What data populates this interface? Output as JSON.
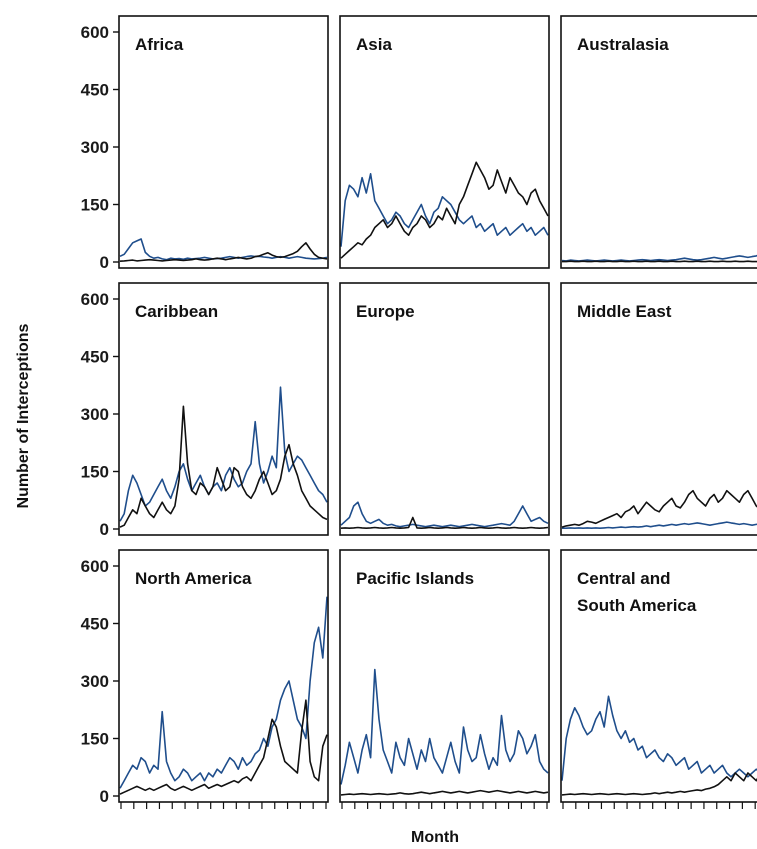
{
  "figure": {
    "ylabel": "Number of Interceptions",
    "xlabel": "Month"
  },
  "chart_data": [
    {
      "type": "line",
      "title": "Africa",
      "title_lines": [
        "Africa"
      ],
      "ylim": [
        0,
        600
      ],
      "yticks": [
        0,
        150,
        300,
        450,
        600
      ],
      "series": [
        {
          "color": "#1f4e8c",
          "values": [
            15,
            20,
            35,
            50,
            55,
            60,
            25,
            15,
            10,
            12,
            8,
            6,
            10,
            8,
            9,
            7,
            10,
            8,
            9,
            10,
            12,
            10,
            8,
            9,
            10,
            12,
            14,
            12,
            10,
            12,
            14,
            16,
            14,
            15,
            13,
            12,
            10,
            12,
            14,
            12,
            10,
            12,
            14,
            12,
            10,
            9,
            8,
            9,
            10,
            12
          ]
        },
        {
          "color": "#111111",
          "values": [
            2,
            3,
            4,
            5,
            3,
            4,
            5,
            6,
            5,
            4,
            3,
            4,
            5,
            6,
            5,
            4,
            5,
            6,
            8,
            6,
            5,
            6,
            8,
            10,
            8,
            6,
            8,
            10,
            12,
            10,
            8,
            10,
            14,
            16,
            20,
            24,
            18,
            14,
            12,
            14,
            18,
            22,
            28,
            40,
            50,
            34,
            20,
            12,
            10,
            8
          ]
        }
      ]
    },
    {
      "type": "line",
      "title": "Asia",
      "title_lines": [
        "Asia"
      ],
      "ylim": [
        0,
        600
      ],
      "yticks": [
        0,
        150,
        300,
        450,
        600
      ],
      "series": [
        {
          "color": "#1f4e8c",
          "values": [
            40,
            160,
            200,
            190,
            170,
            220,
            180,
            230,
            160,
            140,
            120,
            100,
            110,
            130,
            120,
            100,
            90,
            110,
            130,
            150,
            120,
            100,
            130,
            140,
            170,
            160,
            150,
            130,
            110,
            100,
            110,
            120,
            90,
            100,
            80,
            90,
            100,
            70,
            80,
            90,
            70,
            80,
            90,
            100,
            80,
            90,
            70,
            80,
            90,
            70
          ]
        },
        {
          "color": "#111111",
          "values": [
            10,
            20,
            30,
            40,
            50,
            45,
            60,
            70,
            90,
            100,
            110,
            90,
            100,
            120,
            100,
            80,
            70,
            90,
            100,
            120,
            110,
            90,
            100,
            120,
            110,
            140,
            120,
            100,
            150,
            170,
            200,
            230,
            260,
            240,
            220,
            190,
            200,
            240,
            210,
            180,
            220,
            200,
            180,
            170,
            150,
            180,
            190,
            160,
            140,
            120
          ]
        }
      ]
    },
    {
      "type": "line",
      "title": "Australasia",
      "title_lines": [
        "Australasia"
      ],
      "ylim": [
        0,
        600
      ],
      "yticks": [
        0,
        150,
        300,
        450,
        600
      ],
      "series": [
        {
          "color": "#1f4e8c",
          "values": [
            4,
            3,
            5,
            4,
            3,
            4,
            5,
            4,
            3,
            4,
            5,
            4,
            3,
            4,
            5,
            4,
            3,
            4,
            5,
            6,
            5,
            4,
            5,
            6,
            5,
            4,
            5,
            6,
            8,
            10,
            8,
            6,
            5,
            6,
            8,
            10,
            12,
            10,
            8,
            10,
            12,
            14,
            16,
            14,
            12,
            14,
            16,
            20,
            25,
            18
          ]
        },
        {
          "color": "#111111",
          "values": [
            1,
            1,
            2,
            1,
            1,
            2,
            1,
            1,
            2,
            1,
            1,
            2,
            1,
            1,
            2,
            1,
            1,
            2,
            1,
            1,
            2,
            1,
            1,
            2,
            1,
            1,
            2,
            1,
            1,
            2,
            1,
            1,
            2,
            1,
            1,
            2,
            1,
            1,
            2,
            1,
            1,
            2,
            1,
            1,
            2,
            1,
            1,
            2,
            1,
            1
          ]
        }
      ]
    },
    {
      "type": "line",
      "title": "Caribbean",
      "title_lines": [
        "Caribbean"
      ],
      "ylim": [
        0,
        600
      ],
      "yticks": [
        0,
        150,
        300,
        450,
        600
      ],
      "series": [
        {
          "color": "#1f4e8c",
          "values": [
            20,
            40,
            100,
            140,
            120,
            90,
            60,
            70,
            90,
            110,
            130,
            100,
            80,
            110,
            150,
            170,
            130,
            100,
            120,
            140,
            110,
            90,
            110,
            120,
            100,
            140,
            160,
            130,
            110,
            120,
            150,
            170,
            280,
            170,
            120,
            150,
            190,
            160,
            370,
            200,
            150,
            170,
            190,
            180,
            160,
            140,
            120,
            100,
            90,
            70
          ]
        },
        {
          "color": "#111111",
          "values": [
            5,
            10,
            30,
            50,
            40,
            80,
            60,
            40,
            30,
            50,
            70,
            50,
            40,
            60,
            130,
            320,
            170,
            100,
            90,
            120,
            110,
            90,
            110,
            160,
            130,
            100,
            110,
            160,
            150,
            110,
            90,
            80,
            100,
            130,
            150,
            120,
            90,
            100,
            130,
            190,
            220,
            170,
            140,
            100,
            80,
            60,
            50,
            40,
            30,
            25
          ]
        }
      ]
    },
    {
      "type": "line",
      "title": "Europe",
      "title_lines": [
        "Europe"
      ],
      "ylim": [
        0,
        600
      ],
      "yticks": [
        0,
        150,
        300,
        450,
        600
      ],
      "series": [
        {
          "color": "#1f4e8c",
          "values": [
            10,
            20,
            30,
            60,
            70,
            40,
            20,
            15,
            20,
            25,
            15,
            10,
            12,
            8,
            6,
            8,
            10,
            12,
            10,
            8,
            6,
            8,
            10,
            8,
            6,
            8,
            10,
            8,
            6,
            8,
            10,
            12,
            10,
            8,
            6,
            8,
            10,
            12,
            14,
            12,
            10,
            20,
            40,
            60,
            40,
            20,
            25,
            30,
            20,
            15
          ]
        },
        {
          "color": "#111111",
          "values": [
            2,
            3,
            2,
            3,
            4,
            3,
            2,
            3,
            4,
            3,
            2,
            3,
            4,
            3,
            2,
            3,
            4,
            30,
            3,
            2,
            3,
            4,
            3,
            2,
            3,
            4,
            3,
            2,
            3,
            4,
            3,
            2,
            3,
            4,
            3,
            2,
            3,
            4,
            3,
            2,
            3,
            4,
            3,
            2,
            3,
            4,
            3,
            2,
            3,
            4
          ]
        }
      ]
    },
    {
      "type": "line",
      "title": "Middle East",
      "title_lines": [
        "Middle East"
      ],
      "ylim": [
        0,
        600
      ],
      "yticks": [
        0,
        150,
        300,
        450,
        600
      ],
      "series": [
        {
          "color": "#1f4e8c",
          "values": [
            2,
            2,
            3,
            2,
            3,
            2,
            3,
            2,
            3,
            2,
            3,
            4,
            3,
            4,
            5,
            4,
            5,
            6,
            5,
            6,
            8,
            6,
            8,
            10,
            8,
            10,
            12,
            10,
            12,
            14,
            12,
            14,
            16,
            14,
            12,
            10,
            12,
            14,
            16,
            18,
            16,
            14,
            12,
            14,
            12,
            10,
            12,
            14,
            12,
            10
          ]
        },
        {
          "color": "#111111",
          "values": [
            5,
            8,
            10,
            12,
            10,
            14,
            20,
            18,
            15,
            20,
            25,
            30,
            35,
            40,
            30,
            45,
            50,
            60,
            40,
            55,
            70,
            60,
            50,
            45,
            60,
            70,
            80,
            60,
            55,
            70,
            90,
            100,
            80,
            70,
            60,
            80,
            90,
            70,
            80,
            100,
            90,
            80,
            70,
            90,
            100,
            80,
            60,
            50,
            70,
            60
          ]
        }
      ]
    },
    {
      "type": "line",
      "title": "North America",
      "title_lines": [
        "North America"
      ],
      "ylim": [
        0,
        600
      ],
      "yticks": [
        0,
        150,
        300,
        450,
        600
      ],
      "series": [
        {
          "color": "#1f4e8c",
          "values": [
            20,
            40,
            60,
            80,
            70,
            100,
            90,
            60,
            80,
            70,
            220,
            90,
            60,
            40,
            50,
            70,
            60,
            40,
            50,
            60,
            40,
            60,
            50,
            70,
            60,
            80,
            100,
            90,
            70,
            100,
            80,
            90,
            110,
            120,
            150,
            130,
            180,
            200,
            250,
            280,
            300,
            250,
            200,
            180,
            150,
            300,
            400,
            440,
            360,
            520
          ]
        },
        {
          "color": "#111111",
          "values": [
            5,
            10,
            15,
            20,
            25,
            20,
            15,
            20,
            15,
            20,
            25,
            30,
            20,
            15,
            20,
            25,
            20,
            15,
            20,
            25,
            30,
            20,
            25,
            30,
            25,
            30,
            35,
            40,
            35,
            45,
            50,
            40,
            60,
            80,
            100,
            150,
            200,
            180,
            130,
            90,
            80,
            70,
            60,
            170,
            250,
            90,
            50,
            40,
            130,
            160
          ]
        }
      ]
    },
    {
      "type": "line",
      "title": "Pacific Islands",
      "title_lines": [
        "Pacific Islands"
      ],
      "ylim": [
        0,
        600
      ],
      "yticks": [
        0,
        150,
        300,
        450,
        600
      ],
      "series": [
        {
          "color": "#1f4e8c",
          "values": [
            30,
            80,
            140,
            100,
            60,
            120,
            160,
            100,
            330,
            200,
            120,
            90,
            60,
            140,
            100,
            80,
            150,
            110,
            70,
            120,
            90,
            150,
            100,
            80,
            60,
            100,
            140,
            90,
            60,
            180,
            120,
            90,
            100,
            160,
            110,
            70,
            100,
            80,
            210,
            120,
            90,
            110,
            170,
            150,
            110,
            130,
            160,
            90,
            70,
            60
          ]
        },
        {
          "color": "#111111",
          "values": [
            3,
            4,
            5,
            4,
            5,
            6,
            5,
            4,
            5,
            6,
            5,
            4,
            5,
            6,
            8,
            6,
            5,
            6,
            8,
            10,
            8,
            6,
            8,
            10,
            12,
            10,
            8,
            10,
            12,
            10,
            8,
            10,
            12,
            14,
            12,
            10,
            12,
            14,
            12,
            10,
            8,
            10,
            12,
            10,
            8,
            10,
            12,
            10,
            8,
            10
          ]
        }
      ]
    },
    {
      "type": "line",
      "title": "Central and South America",
      "title_lines": [
        "Central and",
        "South America"
      ],
      "ylim": [
        0,
        600
      ],
      "yticks": [
        0,
        150,
        300,
        450,
        600
      ],
      "series": [
        {
          "color": "#1f4e8c",
          "values": [
            40,
            150,
            200,
            230,
            210,
            180,
            160,
            170,
            200,
            220,
            180,
            260,
            210,
            170,
            150,
            170,
            140,
            150,
            120,
            130,
            100,
            110,
            120,
            100,
            90,
            110,
            100,
            80,
            90,
            100,
            70,
            80,
            90,
            60,
            70,
            80,
            60,
            70,
            80,
            60,
            50,
            60,
            70,
            60,
            50,
            60,
            70,
            60,
            50,
            70
          ]
        },
        {
          "color": "#111111",
          "values": [
            3,
            4,
            5,
            4,
            5,
            6,
            5,
            4,
            5,
            6,
            5,
            4,
            5,
            6,
            5,
            4,
            5,
            6,
            5,
            4,
            5,
            6,
            8,
            6,
            8,
            10,
            8,
            10,
            12,
            10,
            12,
            14,
            16,
            14,
            18,
            20,
            24,
            30,
            40,
            50,
            40,
            60,
            50,
            40,
            60,
            50,
            40,
            60,
            70,
            50
          ]
        }
      ]
    }
  ]
}
